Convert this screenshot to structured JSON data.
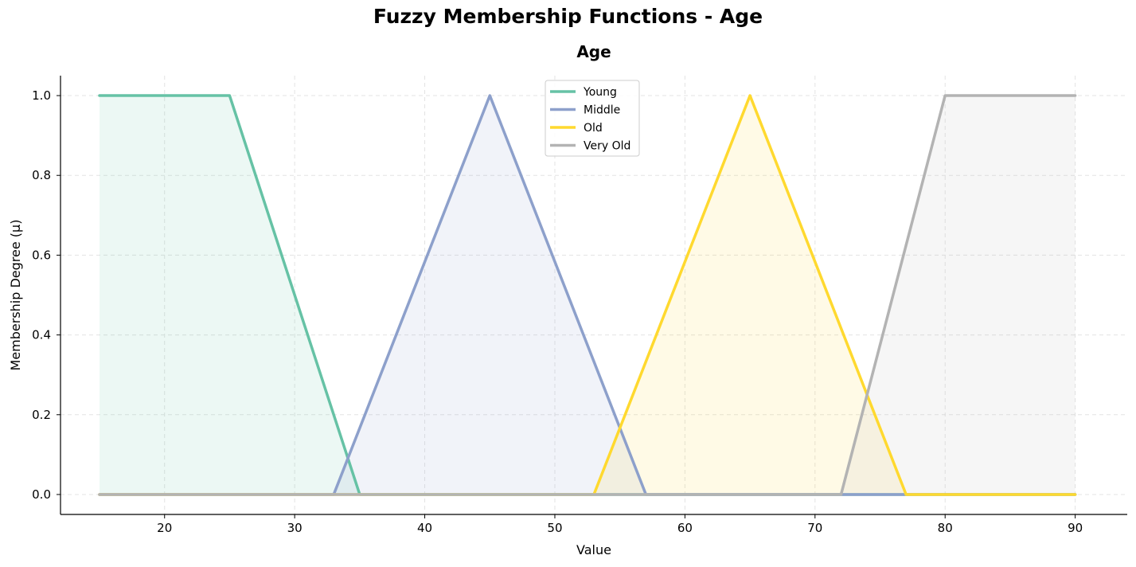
{
  "chart_data": {
    "type": "line",
    "title": "Fuzzy Membership Functions - Age",
    "subtitle": "Age",
    "xlabel": "Value",
    "ylabel": "Membership Degree (μ)",
    "xlim": [
      12,
      94
    ],
    "ylim": [
      -0.05,
      1.05
    ],
    "xticks": [
      20,
      30,
      40,
      50,
      60,
      70,
      80,
      90
    ],
    "yticks": [
      0.0,
      0.2,
      0.4,
      0.6,
      0.8,
      1.0
    ],
    "ytick_labels": [
      "0.0",
      "0.2",
      "0.4",
      "0.6",
      "0.8",
      "1.0"
    ],
    "grid": true,
    "legend_position": "upper-center",
    "series": [
      {
        "name": "Young",
        "color": "#66c2a5",
        "points": [
          [
            15,
            1
          ],
          [
            25,
            1
          ],
          [
            35,
            0
          ],
          [
            90,
            0
          ]
        ]
      },
      {
        "name": "Middle",
        "color": "#8da0cb",
        "points": [
          [
            15,
            0
          ],
          [
            33,
            0
          ],
          [
            45,
            1
          ],
          [
            57,
            0
          ],
          [
            90,
            0
          ]
        ]
      },
      {
        "name": "Old",
        "color": "#ffd92f",
        "points": [
          [
            15,
            0
          ],
          [
            53,
            0
          ],
          [
            65,
            1
          ],
          [
            77,
            0
          ],
          [
            90,
            0
          ]
        ]
      },
      {
        "name": "Very Old",
        "color": "#b3b3b3",
        "points": [
          [
            15,
            0
          ],
          [
            72,
            0
          ],
          [
            80,
            1
          ],
          [
            90,
            1
          ]
        ]
      }
    ]
  }
}
